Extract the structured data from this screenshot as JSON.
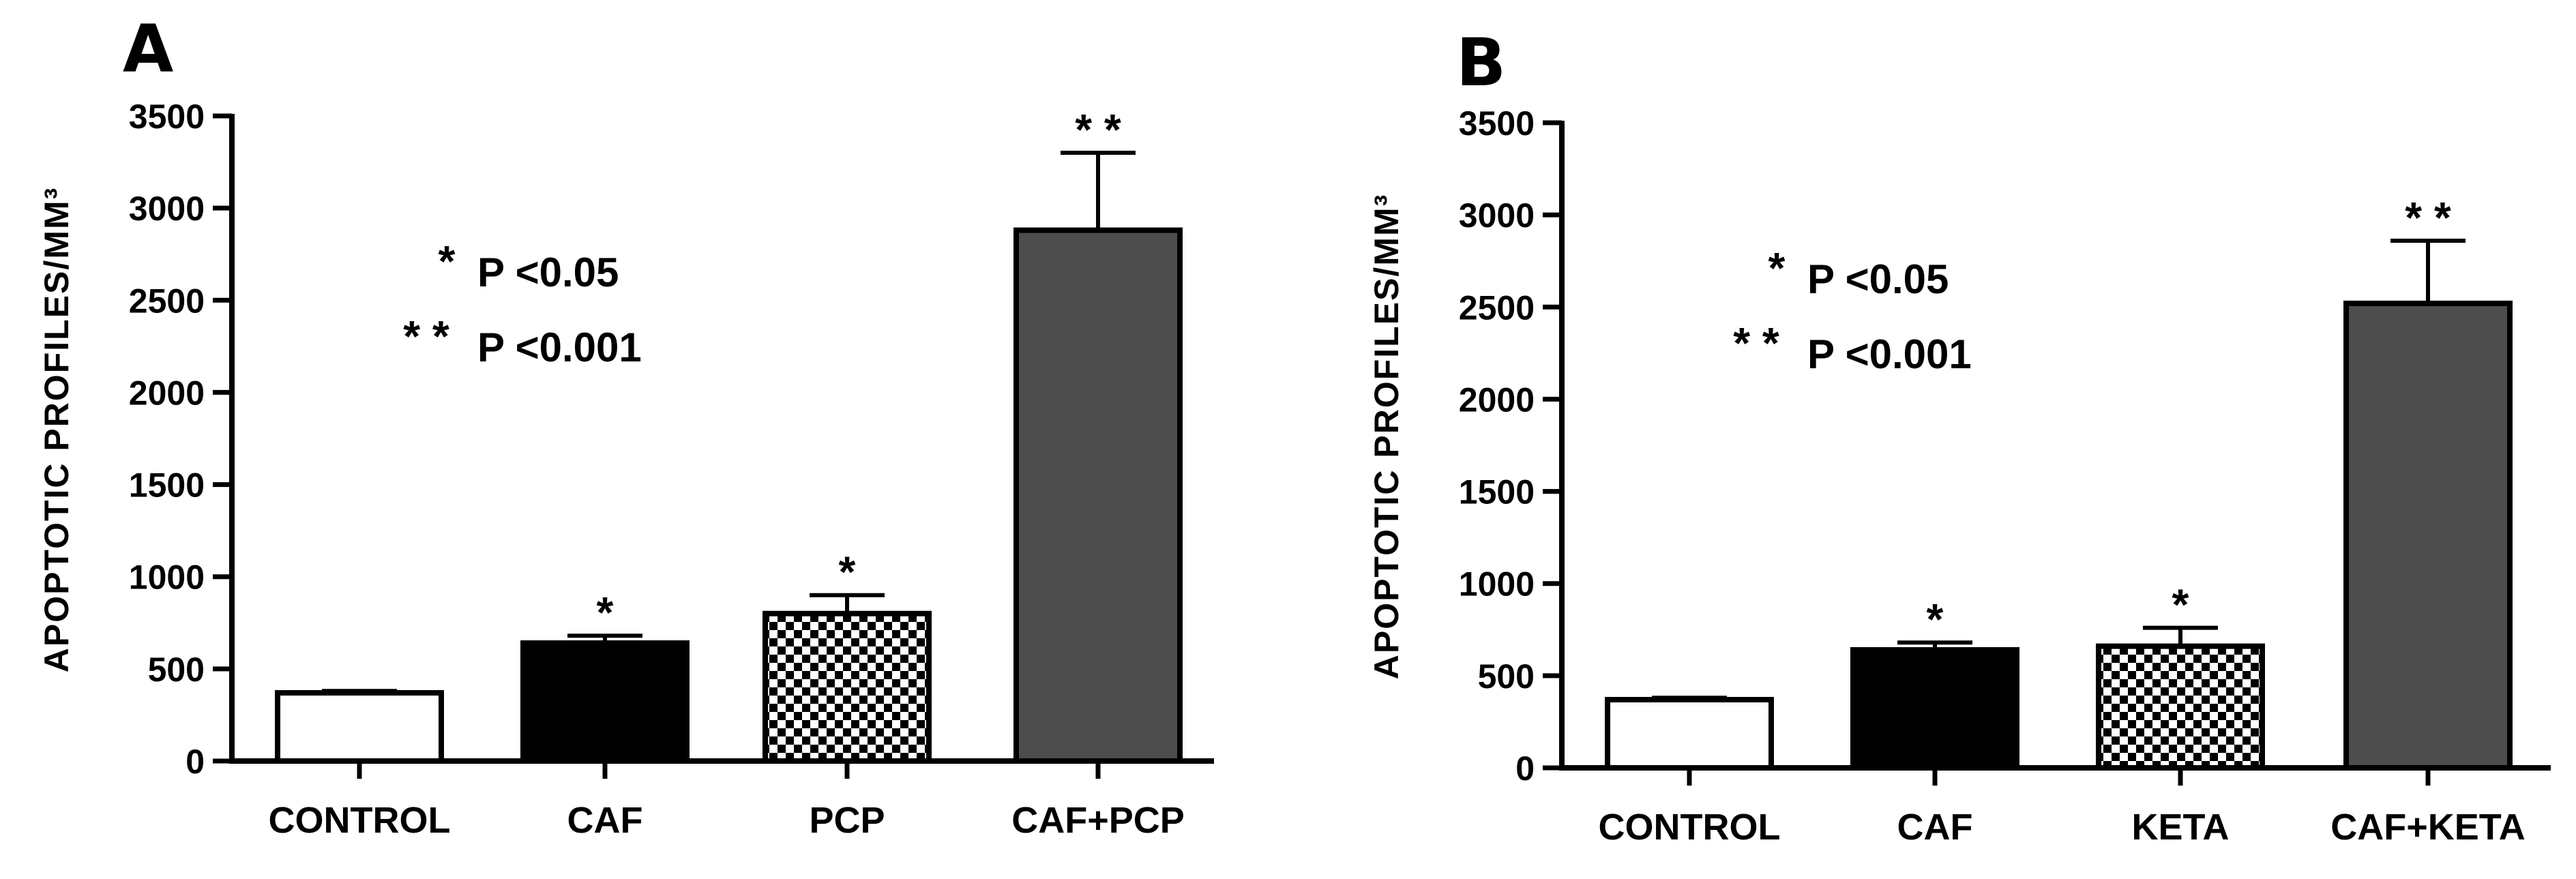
{
  "chart_data": [
    {
      "type": "bar",
      "panel": "A",
      "categories": [
        "CONTROL",
        "CAF",
        "PCP",
        "CAF+PCP"
      ],
      "values": [
        370,
        640,
        800,
        2880
      ],
      "errors": [
        10,
        40,
        100,
        420
      ],
      "significance": [
        "",
        "*",
        "*",
        "* *"
      ],
      "patterns": [
        "white",
        "black",
        "checker",
        "gray"
      ],
      "ylabel": "APOPTOTIC PROFILES/MM³",
      "ylim": [
        0,
        3500
      ],
      "yticks": [
        "0",
        "500",
        "1000",
        "1500",
        "2000",
        "2500",
        "3000",
        "3500"
      ],
      "legend": [
        {
          "stars": "*",
          "text": "P <0.05"
        },
        {
          "stars": "* *",
          "text": "P <0.001"
        }
      ]
    },
    {
      "type": "bar",
      "panel": "B",
      "categories": [
        "CONTROL",
        "CAF",
        "KETA",
        "CAF+KETA"
      ],
      "values": [
        370,
        640,
        660,
        2520
      ],
      "errors": [
        10,
        40,
        100,
        340
      ],
      "significance": [
        "",
        "*",
        "*",
        "* *"
      ],
      "patterns": [
        "white",
        "black",
        "checker",
        "gray"
      ],
      "ylabel": "APOPTOTIC PROFILES/MM³",
      "ylim": [
        0,
        3500
      ],
      "yticks": [
        "0",
        "500",
        "1000",
        "1500",
        "2000",
        "2500",
        "3000",
        "3500"
      ],
      "legend": [
        {
          "stars": "*",
          "text": "P <0.05"
        },
        {
          "stars": "* *",
          "text": "P <0.001"
        }
      ]
    }
  ],
  "colors": {
    "black_bar": "#000000",
    "gray_bar": "#4d4d4d",
    "white_bar": "#ffffff",
    "checker": "#000000"
  }
}
